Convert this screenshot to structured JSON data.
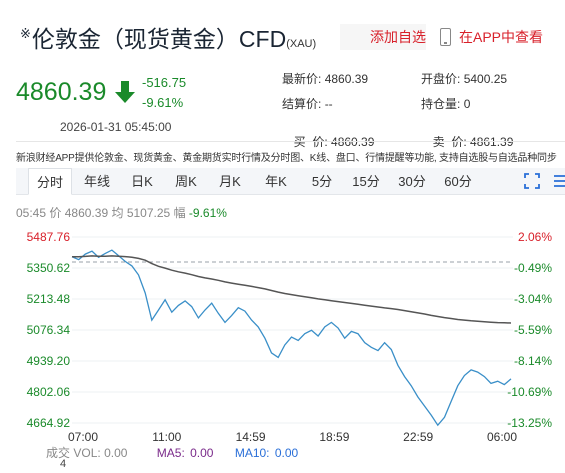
{
  "header": {
    "title_prefix": "※",
    "title": "伦敦金（现货黄金）CFD",
    "title_code": "(XAU)",
    "add_fav": "添加自选",
    "app_view": "在APP中查看"
  },
  "quote": {
    "price": "4860.39",
    "change": "-516.75",
    "change_pct": "-9.61%",
    "timestamp": "2026-01-31 05:45:00",
    "up_color": "#d8202a",
    "down_color": "#1a8a2a"
  },
  "stats": {
    "latest_label": "最新价:",
    "latest_value": "4860.39",
    "open_label": "开盘价:",
    "open_value": "5400.25",
    "settle_label": "结算价:",
    "settle_value": "--",
    "hold_label": "持仓量:",
    "hold_value": "0",
    "buy_label": "买  价:",
    "buy_value": "4860.39",
    "sell_label": "卖  价:",
    "sell_value": "4861.39"
  },
  "notice": "新浪财经APP提供伦敦金、现货黄金、黄金期货实时行情及分时图、K线、盘口、行情提醒等功能, 支持自选股与自选品种同步",
  "tabs": [
    "分时",
    "年线",
    "日K",
    "周K",
    "月K",
    "年K",
    "5分",
    "15分",
    "30分",
    "60分"
  ],
  "active_tab": "分时",
  "info": {
    "time": "05:45",
    "price_label": "价",
    "price": "4860.39",
    "avg_label": "均",
    "avg": "5107.25",
    "amp_label": "幅",
    "amp": "-9.61%"
  },
  "chart_data": {
    "type": "line",
    "prev_close": 5377.14,
    "ylim": [
      4664.92,
      5487.76
    ],
    "y_ticks_left": [
      "5487.76",
      "5350.62",
      "5213.48",
      "5076.34",
      "4939.20",
      "4802.06",
      "4664.92"
    ],
    "y_ticks_right": [
      "2.06%",
      "-0.49%",
      "-3.04%",
      "-5.59%",
      "-8.14%",
      "-10.69%",
      "-13.25%"
    ],
    "x_ticks": [
      "07:00",
      "11:00",
      "14:59",
      "18:59",
      "22:59",
      "06:00"
    ],
    "series": [
      {
        "name": "价",
        "color": "#3a8fc8",
        "values": [
          5400,
          5388,
          5412,
          5425,
          5398,
          5415,
          5430,
          5405,
          5380,
          5360,
          5320,
          5240,
          5120,
          5165,
          5210,
          5155,
          5185,
          5205,
          5180,
          5130,
          5165,
          5195,
          5150,
          5110,
          5140,
          5175,
          5160,
          5120,
          5090,
          5040,
          4975,
          4955,
          5010,
          5045,
          5030,
          5060,
          5075,
          5050,
          5090,
          5110,
          5085,
          5040,
          5070,
          5060,
          5020,
          5000,
          4985,
          5020,
          4990,
          4920,
          4870,
          4830,
          4780,
          4740,
          4700,
          4655,
          4690,
          4760,
          4830,
          4875,
          4900,
          4890,
          4870,
          4840,
          4850,
          4835,
          4860
        ]
      },
      {
        "name": "均",
        "color": "#555555",
        "values": [
          5400,
          5400,
          5402,
          5404,
          5403,
          5403,
          5404,
          5403,
          5401,
          5398,
          5393,
          5385,
          5370,
          5358,
          5350,
          5341,
          5334,
          5328,
          5321,
          5313,
          5307,
          5302,
          5296,
          5289,
          5284,
          5279,
          5274,
          5269,
          5264,
          5258,
          5251,
          5244,
          5238,
          5233,
          5228,
          5223,
          5219,
          5214,
          5210,
          5206,
          5202,
          5198,
          5194,
          5190,
          5186,
          5182,
          5178,
          5174,
          5171,
          5167,
          5162,
          5157,
          5152,
          5147,
          5141,
          5136,
          5131,
          5127,
          5123,
          5120,
          5117,
          5115,
          5113,
          5111,
          5109,
          5108,
          5107.25
        ]
      }
    ],
    "ref_line_style": "dashed"
  },
  "volume": {
    "label": "成交",
    "vol_label": "VOL:",
    "vol_value": "0.00",
    "ma5_label": "MA5:",
    "ma5_value": "0.00",
    "ma10_label": "MA10:",
    "ma10_value": "0.00",
    "axis_value": "4"
  }
}
